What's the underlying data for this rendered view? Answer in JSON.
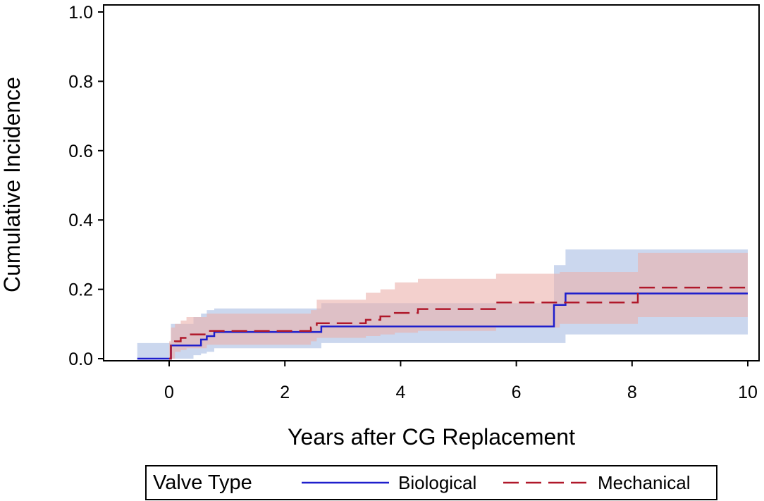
{
  "chart_data": {
    "type": "line",
    "subtype": "step-cumulative-incidence-with-confidence-bands",
    "title": "",
    "xlabel": "Years after CG Replacement",
    "ylabel": "Cumulative Incidence",
    "xlim": [
      -1,
      10
    ],
    "ylim": [
      0,
      1
    ],
    "xticks": [
      0,
      2,
      4,
      6,
      8,
      10
    ],
    "yticks": [
      0.0,
      0.2,
      0.4,
      0.6,
      0.8,
      1.0
    ],
    "ytick_labels": [
      "0.0",
      "0.2",
      "0.4",
      "0.6",
      "0.8",
      "1.0"
    ],
    "grid": false,
    "legend": {
      "title": "Valve Type",
      "placement": "bottom",
      "entries": [
        "Biological",
        "Mechanical"
      ]
    },
    "series": [
      {
        "name": "Biological",
        "color": "#1f1fcc",
        "line_style": "solid",
        "band_color": "#a9bde3",
        "x": [
          -0.55,
          0.0,
          0.03,
          0.42,
          0.55,
          0.65,
          0.78,
          2.63,
          6.65,
          6.85,
          10.0
        ],
        "y": [
          0.0,
          0.0,
          0.038,
          0.038,
          0.055,
          0.065,
          0.077,
          0.093,
          0.155,
          0.188,
          0.188
        ],
        "lower": [
          0.0,
          0.0,
          0.0,
          0.01,
          0.015,
          0.02,
          0.03,
          0.045,
          0.045,
          0.07,
          0.087
        ],
        "upper": [
          0.045,
          0.045,
          0.1,
          0.12,
          0.13,
          0.14,
          0.145,
          0.16,
          0.27,
          0.315,
          0.315
        ]
      },
      {
        "name": "Mechanical",
        "color": "#b0182a",
        "line_style": "dashed",
        "band_color": "#ebb0ab",
        "x": [
          0.0,
          0.03,
          0.1,
          0.2,
          0.3,
          0.65,
          2.45,
          2.55,
          3.4,
          3.65,
          3.9,
          4.3,
          5.65,
          6.75,
          8.1,
          10.0
        ],
        "y": [
          0.0,
          0.045,
          0.05,
          0.06,
          0.07,
          0.08,
          0.09,
          0.102,
          0.112,
          0.122,
          0.132,
          0.143,
          0.162,
          0.162,
          0.205,
          0.205
        ],
        "lower": [
          0.0,
          0.0,
          0.02,
          0.025,
          0.03,
          0.04,
          0.05,
          0.06,
          0.065,
          0.07,
          0.075,
          0.08,
          0.09,
          0.1,
          0.12,
          0.12
        ],
        "upper": [
          0.05,
          0.09,
          0.1,
          0.11,
          0.12,
          0.13,
          0.14,
          0.17,
          0.19,
          0.2,
          0.22,
          0.23,
          0.245,
          0.25,
          0.305,
          0.305
        ]
      }
    ]
  }
}
